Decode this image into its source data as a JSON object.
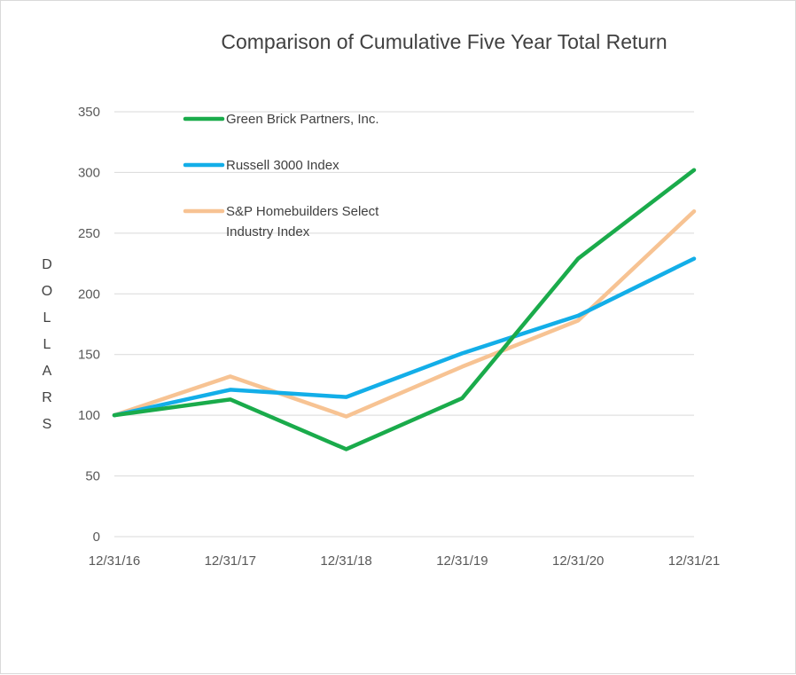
{
  "chart_data": {
    "type": "line",
    "title": "Comparison of Cumulative Five Year Total Return",
    "ylabel": "DOLLARS",
    "xlabel": "",
    "categories": [
      "12/31/16",
      "12/31/17",
      "12/31/18",
      "12/31/19",
      "12/31/20",
      "12/31/21"
    ],
    "ylim": [
      0,
      350
    ],
    "yticks": [
      0,
      50,
      100,
      150,
      200,
      250,
      300,
      350
    ],
    "grid": "horizontal",
    "legend_position": "top-left",
    "series": [
      {
        "name": "Green Brick Partners, Inc.",
        "legend_lines": [
          "Green Brick Partners, Inc."
        ],
        "color": "#1aab4b",
        "values": [
          100,
          113,
          72,
          114,
          229,
          302
        ]
      },
      {
        "name": "Russell 3000 Index",
        "legend_lines": [
          "Russell 3000 Index"
        ],
        "color": "#13aee8",
        "values": [
          100,
          121,
          115,
          151,
          182,
          229
        ]
      },
      {
        "name": "S&P Homebuilders Select Industry Index",
        "legend_lines": [
          "S&P Homebuilders Select",
          "Industry Index"
        ],
        "color": "#f7c393",
        "values": [
          100,
          132,
          99,
          140,
          178,
          268
        ]
      }
    ]
  }
}
